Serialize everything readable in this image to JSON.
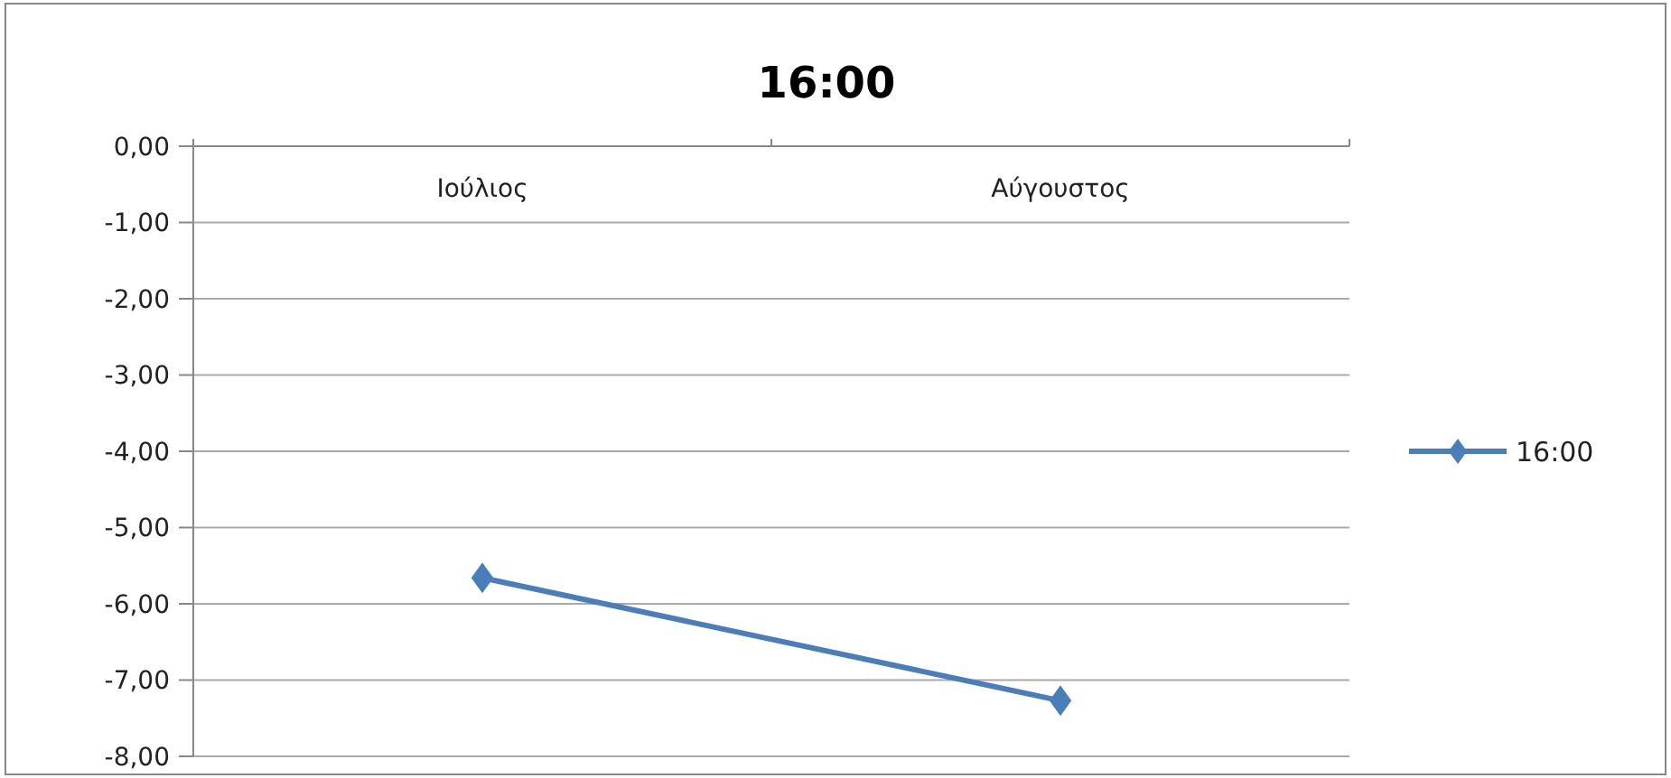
{
  "chart_data": {
    "type": "line",
    "title": "16:00",
    "categories": [
      "Ιούλιος",
      "Αύγουστος"
    ],
    "series": [
      {
        "name": "16:00",
        "color": "#4a7ebb",
        "values": [
          -5.66,
          -7.27
        ]
      }
    ],
    "ylim": [
      -8,
      0
    ],
    "yticks": [
      {
        "value": 0,
        "label": "0,00"
      },
      {
        "value": -1,
        "label": "-1,00"
      },
      {
        "value": -2,
        "label": "-2,00"
      },
      {
        "value": -3,
        "label": "-3,00"
      },
      {
        "value": -4,
        "label": "-4,00"
      },
      {
        "value": -5,
        "label": "-5,00"
      },
      {
        "value": -6,
        "label": "-6,00"
      },
      {
        "value": -7,
        "label": "-7,00"
      },
      {
        "value": -8,
        "label": "-8,00"
      }
    ],
    "grid": "y",
    "legend": "right",
    "marker": "diamond",
    "line_style": "solid"
  }
}
